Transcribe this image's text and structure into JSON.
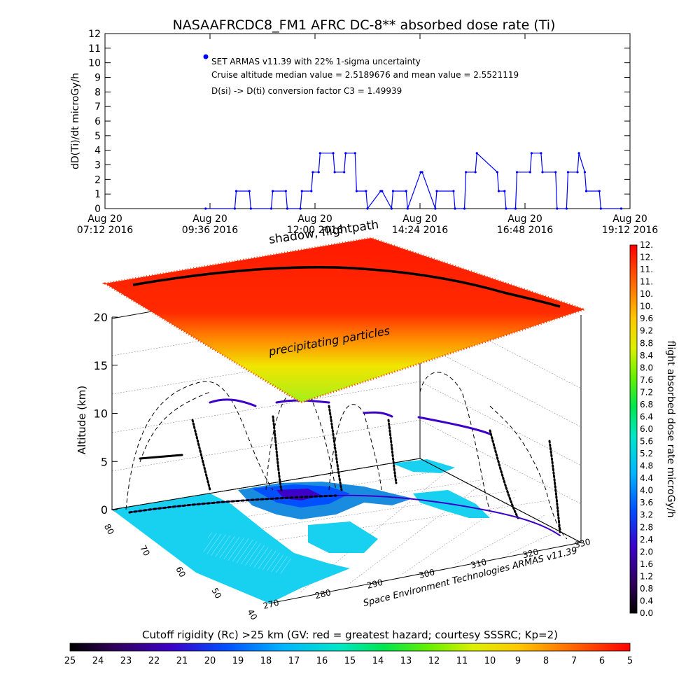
{
  "chart_data": [
    {
      "type": "line",
      "title": "NASAAFRCDC8_FM1 AFRC DC-8** absorbed dose rate (Ti)",
      "ylabel": "dD(Ti)/dt microGy/h",
      "ylim": [
        0,
        12
      ],
      "y_ticks": [
        "0",
        "1",
        "2",
        "3",
        "4",
        "5",
        "6",
        "7",
        "8",
        "9",
        "10",
        "11",
        "12"
      ],
      "x_ticks": [
        {
          "line1": "Aug 20",
          "line2": "07:12 2016"
        },
        {
          "line1": "Aug 20",
          "line2": "09:36 2016"
        },
        {
          "line1": "Aug 20",
          "line2": "12:00 2016"
        },
        {
          "line1": "Aug 20",
          "line2": "14:24 2016"
        },
        {
          "line1": "Aug 20",
          "line2": "16:48 2016"
        },
        {
          "line1": "Aug 20",
          "line2": "19:12 2016"
        }
      ],
      "xlim": [
        "2016-08-20 07:12",
        "2016-08-20 19:12"
      ],
      "color": "#0000ff",
      "legend_text": "SET ARMAS v11.39 with 22% 1-sigma uncertainty",
      "annotations": [
        "Cruise altitude median value = 2.5189676 and mean value = 2.5521119",
        "D(si) -> D(ti) conversion factor C3 = 1.49939"
      ],
      "series": [
        {
          "x": [
            "2016-08-20 09:30",
            "2016-08-20 10:10",
            "2016-08-20 10:12",
            "2016-08-20 10:30",
            "2016-08-20 10:32",
            "2016-08-20 11:00",
            "2016-08-20 11:02",
            "2016-08-20 11:20",
            "2016-08-20 11:22",
            "2016-08-20 11:40",
            "2016-08-20 11:42",
            "2016-08-20 11:55",
            "2016-08-20 11:57",
            "2016-08-20 12:05",
            "2016-08-20 12:07",
            "2016-08-20 12:25",
            "2016-08-20 12:27",
            "2016-08-20 12:40",
            "2016-08-20 12:42",
            "2016-08-20 12:55",
            "2016-08-20 12:57",
            "2016-08-20 13:10",
            "2016-08-20 13:12",
            "2016-08-20 13:30",
            "2016-08-20 13:32",
            "2016-08-20 13:45",
            "2016-08-20 13:47",
            "2016-08-20 14:05",
            "2016-08-20 14:07",
            "2016-08-20 14:25",
            "2016-08-20 14:27",
            "2016-08-20 14:45",
            "2016-08-20 14:47",
            "2016-08-20 15:10",
            "2016-08-20 15:12",
            "2016-08-20 15:25",
            "2016-08-20 15:27",
            "2016-08-20 15:40",
            "2016-08-20 15:42",
            "2016-08-20 16:10",
            "2016-08-20 16:12",
            "2016-08-20 16:20",
            "2016-08-20 16:22",
            "2016-08-20 16:35",
            "2016-08-20 16:37",
            "2016-08-20 16:55",
            "2016-08-20 16:57",
            "2016-08-20 17:10",
            "2016-08-20 17:12",
            "2016-08-20 17:30",
            "2016-08-20 17:32",
            "2016-08-20 17:45",
            "2016-08-20 17:47",
            "2016-08-20 18:00",
            "2016-08-20 18:02",
            "2016-08-20 18:10",
            "2016-08-20 18:12",
            "2016-08-20 18:30",
            "2016-08-20 18:32",
            "2016-08-20 19:00"
          ],
          "y": [
            0.0,
            0.0,
            1.2,
            1.2,
            0.0,
            0.0,
            1.2,
            1.2,
            0.0,
            0.0,
            1.2,
            1.2,
            2.5,
            2.5,
            3.8,
            3.8,
            2.5,
            2.5,
            3.8,
            3.8,
            1.2,
            1.2,
            0.0,
            1.2,
            1.2,
            0.0,
            1.2,
            1.2,
            0.0,
            2.5,
            2.5,
            0.0,
            1.2,
            1.2,
            0.0,
            0.0,
            2.5,
            2.5,
            3.8,
            2.5,
            1.2,
            1.2,
            0.0,
            0.0,
            2.5,
            2.5,
            3.8,
            3.8,
            2.5,
            2.5,
            0.0,
            0.0,
            2.5,
            2.5,
            3.8,
            2.5,
            1.2,
            1.2,
            0.0,
            0.0
          ]
        }
      ]
    },
    {
      "type": "scatter",
      "title": "shadow, flightpath",
      "annotation": "precipitating particles",
      "zlabel": "Altitude (km)",
      "z_ticks": [
        "0",
        "5",
        "10",
        "15",
        "20"
      ],
      "zlim": [
        0,
        25
      ],
      "lat_ticks": [
        "40",
        "50",
        "60",
        "70",
        "80"
      ],
      "lon_ticks": [
        "270",
        "280",
        "290",
        "300",
        "310",
        "320",
        "330"
      ],
      "credit": "Space Environment Technologies ARMAS v11.39",
      "colorbar": {
        "label": "flight absorbed dose rate microGy/h",
        "range": [
          0,
          12
        ],
        "ticks": [
          "0.0",
          "0.4",
          "0.8",
          "1.2",
          "1.6",
          "2.0",
          "2.4",
          "2.8",
          "3.2",
          "3.6",
          "4.0",
          "4.4",
          "4.8",
          "5.2",
          "5.6",
          "6.0",
          "6.4",
          "6.8",
          "7.2",
          "7.6",
          "8.0",
          "8.4",
          "8.8",
          "9.2",
          "9.6",
          "10.",
          "10.",
          "11.",
          "11.",
          "12.",
          "12."
        ]
      }
    },
    {
      "type": "heatmap",
      "title": "Cutoff rigidity (Rc) >25 km (GV: red = greatest hazard; courtesy SSSRC; Kp=2)",
      "colorbar_ticks": [
        "25",
        "24",
        "23",
        "22",
        "21",
        "20",
        "19",
        "18",
        "17",
        "16",
        "15",
        "14",
        "13",
        "12",
        "11",
        "10",
        "9",
        "8",
        "7",
        "6",
        "5"
      ],
      "range": [
        25,
        5
      ]
    }
  ]
}
